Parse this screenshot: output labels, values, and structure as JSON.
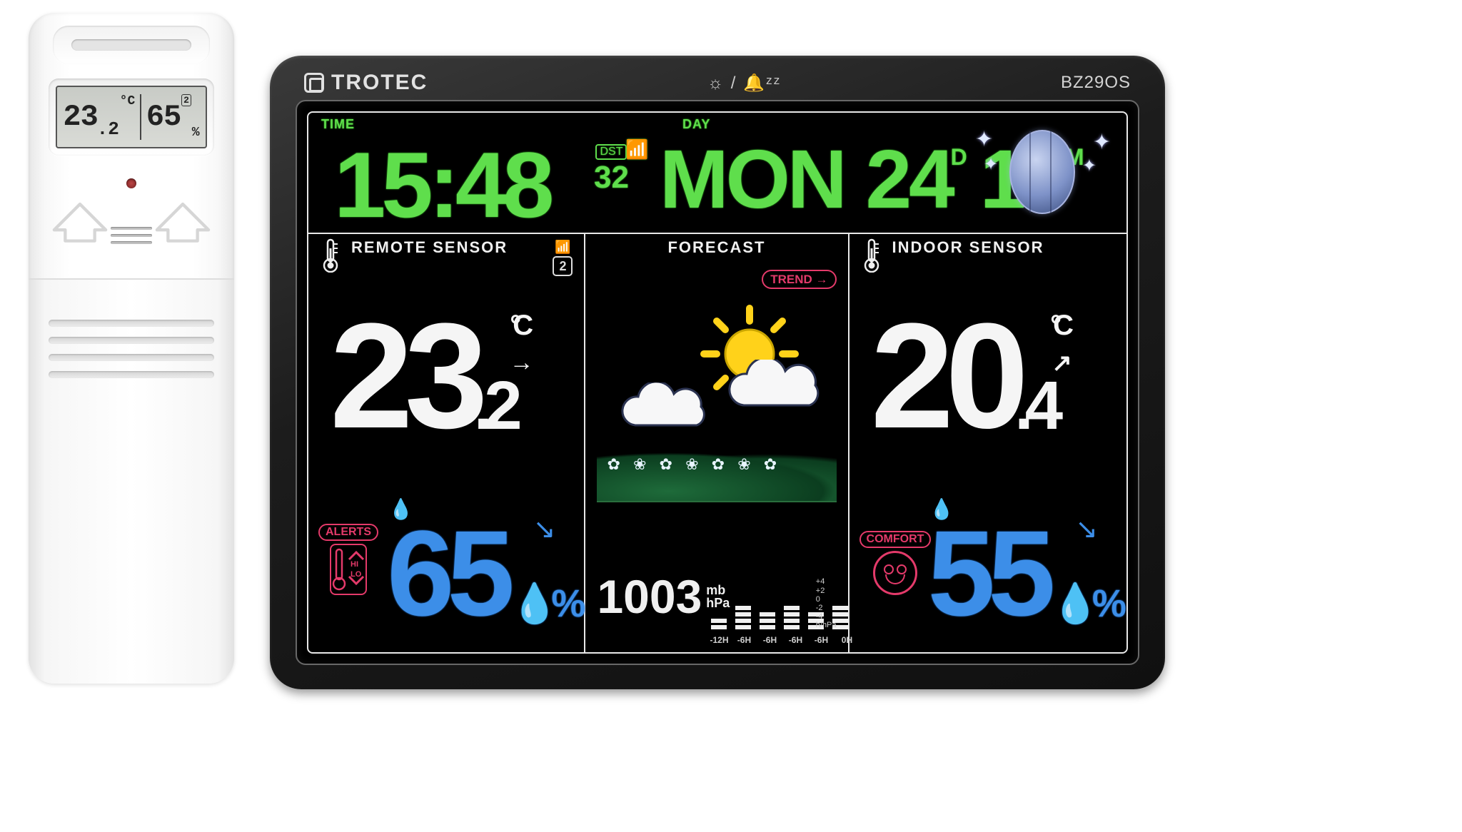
{
  "sensor_unit": {
    "lcd": {
      "temp": "23",
      "temp_dec": ".2",
      "temp_unit": "°C",
      "hum": "65",
      "hum_unit": "%",
      "channel": "2"
    }
  },
  "station": {
    "brand": "TROTEC",
    "model": "BZ29OS",
    "top_icons_text": "☼ / 🔔ᶻᶻ",
    "colors": {
      "green": "#5fde4c",
      "white": "#f5f5f5",
      "blue": "#3c8ee8",
      "red": "#e43a6a",
      "screen_bg": "#000000",
      "frame": "#e8e8e8",
      "bezel": "#1c1c1c"
    },
    "time": {
      "label": "TIME",
      "value": "15:48",
      "dst_tag": "DST",
      "dst_value": "32",
      "radio": "📶"
    },
    "date": {
      "label": "DAY",
      "dow": "MON",
      "day": "24",
      "day_sup": "D",
      "month": "10",
      "month_sup": "M"
    },
    "moon": {
      "phase": "full",
      "stars": 4
    },
    "remote": {
      "label": "REMOTE SENSOR",
      "channel": "2",
      "temp_int": "23",
      "temp_dec": ".2",
      "temp_unit": "°C",
      "temp_trend_arrow": "→",
      "hum": "65",
      "hum_unit": "%",
      "hum_trend_arrow": "↘",
      "alerts_label": "ALERTS",
      "alerts_hi": "HI",
      "alerts_lo": "LO"
    },
    "forecast": {
      "label": "FORECAST",
      "trend_label": "TREND",
      "trend_arrow": "→",
      "condition": "partly_cloudy",
      "pressure_value": "1003",
      "pressure_units_top": "mb",
      "pressure_units_bottom": "hPa",
      "history_labels": [
        "-12H",
        "-6H",
        "-6H",
        "-6H",
        "-6H",
        "0H"
      ],
      "history_bars": [
        2,
        4,
        3,
        4,
        3,
        4
      ],
      "scale": [
        "+4",
        "+2",
        "0",
        "-2",
        "-4",
        "h/hPa"
      ]
    },
    "indoor": {
      "label": "INDOOR SENSOR",
      "temp_int": "20",
      "temp_dec": ".4",
      "temp_unit": "°C",
      "temp_trend_arrow": "↗",
      "hum": "55",
      "hum_unit": "%",
      "hum_trend_arrow": "↘",
      "comfort_label": "COMFORT",
      "comfort_state": "happy"
    }
  }
}
